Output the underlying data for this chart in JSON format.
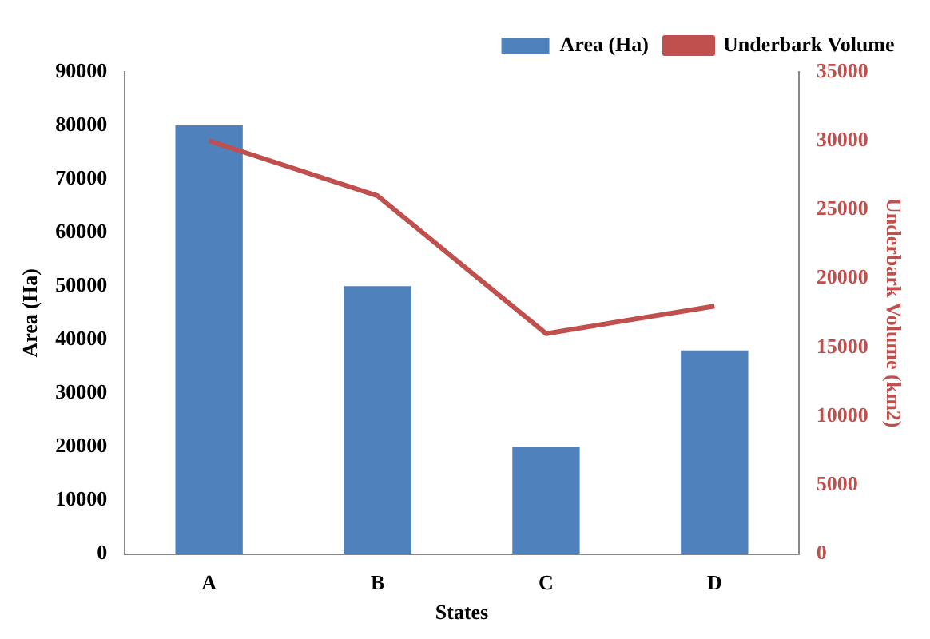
{
  "chart_data": {
    "type": "bar",
    "xlabel": "States",
    "ylabel": "Area (Ha)",
    "y2label": "Underbark Volume (km2)",
    "categories": [
      "A",
      "B",
      "C",
      "D"
    ],
    "series": [
      {
        "name": "Area (Ha)",
        "color": "#4f81bd",
        "values": [
          80000,
          50000,
          20000,
          38000
        ]
      },
      {
        "name": "Underbark Volume",
        "type": "line",
        "axis": "y2",
        "color": "#c0504d",
        "values": [
          30000,
          26000,
          16000,
          18000
        ]
      }
    ],
    "ylim": [
      0,
      90000
    ],
    "yticks": [
      0,
      10000,
      20000,
      30000,
      40000,
      50000,
      60000,
      70000,
      80000,
      90000
    ],
    "y2lim": [
      0,
      35000
    ],
    "y2ticks": [
      0,
      5000,
      10000,
      15000,
      20000,
      25000,
      30000,
      35000
    ],
    "grid": false,
    "legend": "top right",
    "marker": "none"
  }
}
